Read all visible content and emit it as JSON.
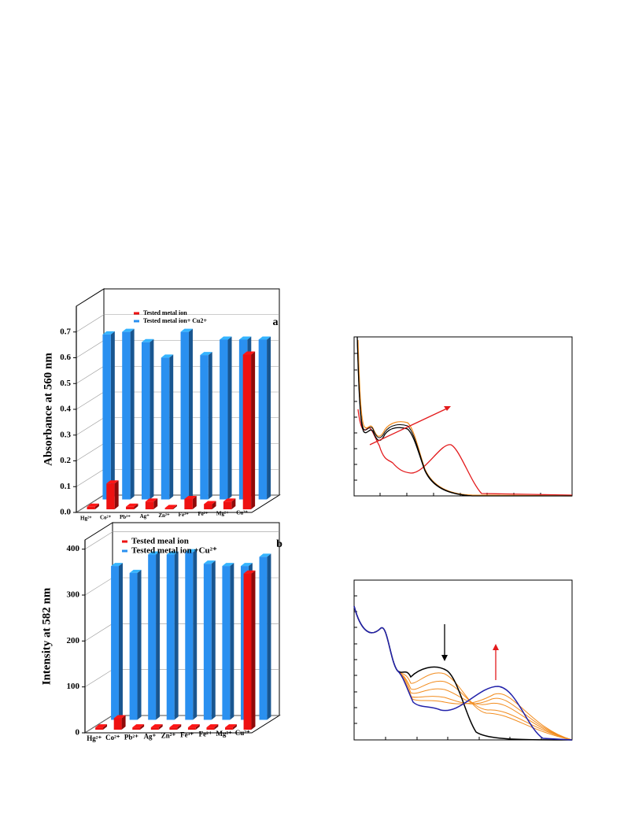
{
  "chart_data": [
    {
      "type": "bar",
      "panel": "a",
      "ylabel": "Absorbance at 560 nm",
      "categories": [
        "Hg²⁺",
        "Co²⁺",
        "Pb²⁺",
        "Ag⁺",
        "Zn²⁺",
        "Fe³⁺",
        "Fe²⁺",
        "Mg²⁺",
        "Cu²⁺"
      ],
      "series": [
        {
          "name": "Tested metal ion",
          "color": "#ee1111",
          "values": [
            0.01,
            0.1,
            0.01,
            0.03,
            0.005,
            0.04,
            0.02,
            0.03,
            0.6
          ]
        },
        {
          "name": "Tested metal ion+ Cu2+",
          "color": "#2a90f0",
          "values": [
            0.64,
            0.65,
            0.61,
            0.55,
            0.65,
            0.56,
            0.62,
            0.62,
            0.62
          ]
        }
      ],
      "ylim": [
        0,
        0.8
      ],
      "yticks": [
        {
          "value": 0,
          "label": "0.0"
        },
        0.1,
        0.2,
        0.3,
        0.4,
        0.5,
        0.6,
        0.7
      ],
      "grid": true,
      "legend": "top"
    },
    {
      "type": "bar",
      "panel": "b",
      "ylabel": "Intensity at 582 nm",
      "categories": [
        "Hg²⁺",
        "Co²⁺",
        "Pb²⁺",
        "Ag⁺",
        "Zn²⁺",
        "Fe³⁺",
        "Fe²⁺",
        "Mg²⁺",
        "Cu²⁺"
      ],
      "series": [
        {
          "name": "Tested meal ion",
          "color": "#ee1111",
          "values": [
            5,
            25,
            5,
            5,
            5,
            5,
            5,
            5,
            340
          ]
        },
        {
          "name": "Tested metal ion +Cu²⁺",
          "color": "#2a90f0",
          "values": [
            335,
            320,
            360,
            360,
            365,
            340,
            335,
            335,
            355
          ]
        }
      ],
      "ylim": [
        0,
        420
      ],
      "yticks": [
        0,
        100,
        200,
        300,
        400
      ],
      "grid": true,
      "legend": "top"
    }
  ]
}
